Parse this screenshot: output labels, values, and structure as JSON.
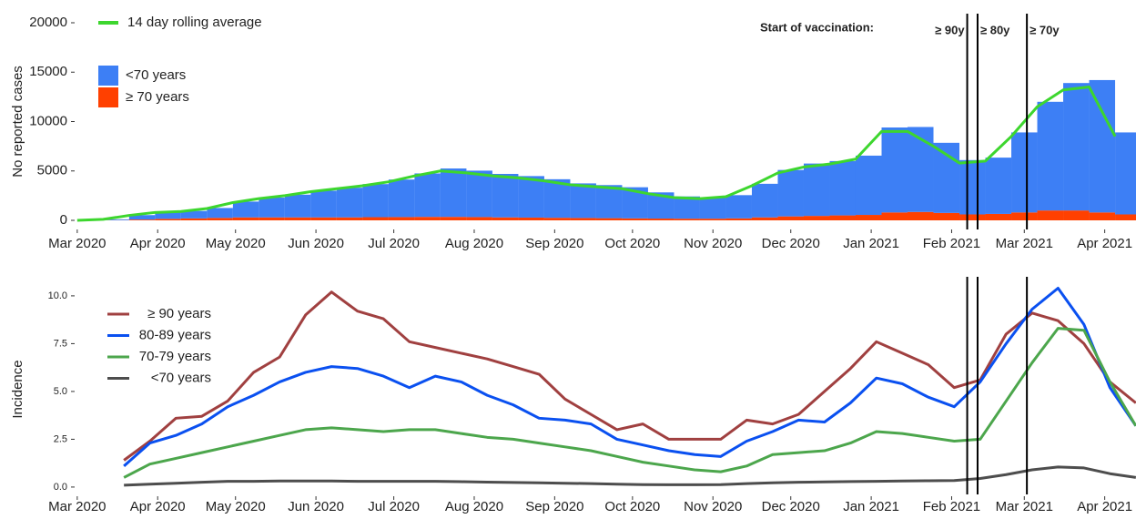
{
  "chart_data": [
    {
      "type": "bar",
      "y_label": "No reported cases",
      "x": [
        0,
        10,
        20,
        30,
        40,
        50,
        60,
        70,
        80,
        90,
        100,
        110,
        120,
        130,
        140,
        150,
        160,
        170,
        180,
        190,
        200,
        210,
        220,
        230,
        240,
        250,
        260,
        270,
        280,
        290,
        300,
        310,
        320,
        330,
        340,
        350,
        360,
        370,
        380,
        390,
        400
      ],
      "xlim": [
        -1,
        407
      ],
      "ylim": [
        -922,
        20922
      ],
      "yticks": [
        0,
        5000,
        10000,
        15000,
        20000
      ],
      "xticks": [
        {
          "value": 0,
          "label": "Mar 2020"
        },
        {
          "value": 31,
          "label": "Apr 2020"
        },
        {
          "value": 61,
          "label": "May 2020"
        },
        {
          "value": 92,
          "label": "Jun 2020"
        },
        {
          "value": 122,
          "label": "Jul 2020"
        },
        {
          "value": 153,
          "label": "Aug 2020"
        },
        {
          "value": 184,
          "label": "Sep 2020"
        },
        {
          "value": 214,
          "label": "Oct 2020"
        },
        {
          "value": 245,
          "label": "Nov 2020"
        },
        {
          "value": 275,
          "label": "Dec 2020"
        },
        {
          "value": 306,
          "label": "Jan 2021"
        },
        {
          "value": 337,
          "label": "Feb 2021"
        },
        {
          "value": 365,
          "label": "Mar 2021"
        },
        {
          "value": 396,
          "label": "Apr 2021"
        }
      ],
      "series": [
        {
          "name": "<70 years",
          "color": "#3d7ff5",
          "values": [
            0,
            80,
            450,
            700,
            750,
            1000,
            1600,
            2000,
            2300,
            2700,
            3000,
            3350,
            3800,
            4400,
            4900,
            4700,
            4400,
            4200,
            3900,
            3500,
            3350,
            3150,
            2650,
            2250,
            2150,
            2350,
            3400,
            4700,
            5300,
            5500,
            6000,
            8600,
            8600,
            7100,
            5500,
            5700,
            8100,
            11000,
            12900,
            13400,
            8300
          ]
        },
        {
          "name": "≥ 70 years",
          "color": "#ff4000",
          "values": [
            0,
            20,
            80,
            150,
            200,
            250,
            300,
            300,
            300,
            300,
            300,
            320,
            330,
            350,
            350,
            330,
            300,
            280,
            260,
            240,
            220,
            200,
            180,
            170,
            170,
            200,
            300,
            400,
            450,
            500,
            550,
            800,
            850,
            750,
            600,
            650,
            800,
            1000,
            1000,
            800,
            600
          ]
        },
        {
          "name": "14 day rolling average",
          "color": "#3dd62e",
          "type": "line",
          "values": [
            0,
            100,
            500,
            800,
            900,
            1200,
            1800,
            2200,
            2500,
            2900,
            3200,
            3500,
            3900,
            4500,
            5000,
            4800,
            4500,
            4300,
            4000,
            3600,
            3400,
            3200,
            2700,
            2300,
            2200,
            2400,
            3500,
            4800,
            5400,
            5700,
            6200,
            9000,
            9000,
            7500,
            5800,
            6000,
            8500,
            11500,
            13200,
            13500,
            8500
          ]
        }
      ],
      "annotation": "Start of vaccination:",
      "vlines": [
        {
          "x": 343,
          "label": "≥ 90y"
        },
        {
          "x": 347,
          "label": "≥ 80y"
        },
        {
          "x": 366,
          "label": "≥ 70y"
        }
      ]
    },
    {
      "type": "line",
      "y_label": "Incidence",
      "x": [
        18,
        28,
        38,
        48,
        58,
        68,
        78,
        88,
        98,
        108,
        118,
        128,
        138,
        148,
        158,
        168,
        178,
        188,
        198,
        208,
        218,
        228,
        238,
        248,
        258,
        268,
        278,
        288,
        298,
        308,
        318,
        328,
        338,
        348,
        358,
        368,
        378,
        388,
        398,
        408
      ],
      "xlim": [
        -1,
        407
      ],
      "ylim": [
        -0.48,
        10.71
      ],
      "yticks": [
        {
          "value": 0,
          "label": "0.0"
        },
        {
          "value": 2.5,
          "label": "2.5"
        },
        {
          "value": 5,
          "label": "5.0"
        },
        {
          "value": 7.5,
          "label": "7.5"
        },
        {
          "value": 10,
          "label": "10.0"
        }
      ],
      "xticks": [
        {
          "value": 0,
          "label": "Mar 2020"
        },
        {
          "value": 31,
          "label": "Apr 2020"
        },
        {
          "value": 61,
          "label": "May 2020"
        },
        {
          "value": 92,
          "label": "Jun 2020"
        },
        {
          "value": 122,
          "label": "Jul 2020"
        },
        {
          "value": 153,
          "label": "Aug 2020"
        },
        {
          "value": 184,
          "label": "Sep 2020"
        },
        {
          "value": 214,
          "label": "Oct 2020"
        },
        {
          "value": 245,
          "label": "Nov 2020"
        },
        {
          "value": 275,
          "label": "Dec 2020"
        },
        {
          "value": 306,
          "label": "Jan 2021"
        },
        {
          "value": 337,
          "label": "Feb 2021"
        },
        {
          "value": 365,
          "label": "Mar 2021"
        },
        {
          "value": 396,
          "label": "Apr 2021"
        }
      ],
      "series": [
        {
          "name": "≥ 90 years",
          "color": "#a04040",
          "values": [
            1.4,
            2.4,
            3.6,
            3.7,
            4.5,
            6.0,
            6.8,
            9.0,
            10.2,
            9.2,
            8.8,
            7.6,
            7.3,
            7.0,
            6.7,
            6.3,
            5.9,
            4.6,
            3.8,
            3.0,
            3.3,
            2.5,
            2.5,
            2.5,
            3.5,
            3.3,
            3.8,
            5.0,
            6.2,
            7.6,
            7.0,
            6.4,
            5.2,
            5.6,
            8.0,
            9.1,
            8.7,
            7.5,
            5.5,
            4.4
          ]
        },
        {
          "name": "80-89 years",
          "color": "#0a50f0",
          "values": [
            1.1,
            2.3,
            2.7,
            3.3,
            4.2,
            4.8,
            5.5,
            6.0,
            6.3,
            6.2,
            5.8,
            5.2,
            5.8,
            5.5,
            4.8,
            4.3,
            3.6,
            3.5,
            3.3,
            2.5,
            2.2,
            1.9,
            1.7,
            1.6,
            2.4,
            2.9,
            3.5,
            3.4,
            4.4,
            5.7,
            5.4,
            4.7,
            4.2,
            5.5,
            7.5,
            9.3,
            10.4,
            8.5,
            5.2,
            3.2
          ]
        },
        {
          "name": "70-79 years",
          "color": "#4ca64c",
          "values": [
            0.5,
            1.2,
            1.5,
            1.8,
            2.1,
            2.4,
            2.7,
            3.0,
            3.1,
            3.0,
            2.9,
            3.0,
            3.0,
            2.8,
            2.6,
            2.5,
            2.3,
            2.1,
            1.9,
            1.6,
            1.3,
            1.1,
            0.9,
            0.8,
            1.1,
            1.7,
            1.8,
            1.9,
            2.3,
            2.9,
            2.8,
            2.6,
            2.4,
            2.5,
            4.5,
            6.5,
            8.3,
            8.2,
            5.5,
            3.2
          ]
        },
        {
          "name": "<70 years",
          "color": "#4d4d4d",
          "values": [
            0.1,
            0.15,
            0.2,
            0.25,
            0.3,
            0.3,
            0.32,
            0.32,
            0.32,
            0.3,
            0.3,
            0.3,
            0.3,
            0.28,
            0.26,
            0.24,
            0.22,
            0.2,
            0.18,
            0.15,
            0.13,
            0.12,
            0.12,
            0.13,
            0.18,
            0.22,
            0.25,
            0.27,
            0.29,
            0.3,
            0.32,
            0.33,
            0.34,
            0.45,
            0.65,
            0.9,
            1.05,
            1.0,
            0.7,
            0.5
          ]
        }
      ],
      "vlines": [
        343,
        347,
        366
      ]
    }
  ]
}
